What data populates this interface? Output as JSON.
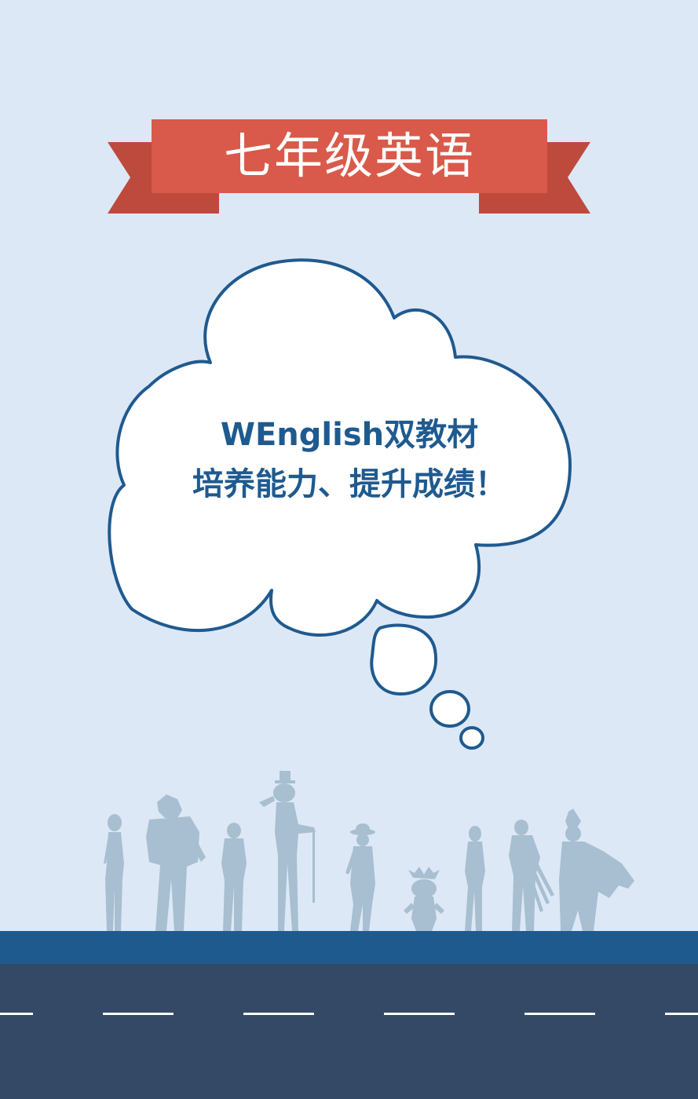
{
  "banner": {
    "title": "七年级英语"
  },
  "thought_bubble": {
    "line1": "WEnglish双教材",
    "line2": "培养能力、提升成绩！"
  },
  "colors": {
    "background": "#dde8f6",
    "banner_red": "#d95a4a",
    "banner_tail": "#bd4a3d",
    "bubble_outline": "#1f5a8f",
    "bubble_text": "#1f5a8f",
    "silhouettes": "#a7bfd0",
    "road_top": "#1f5a8f",
    "road": "#344966",
    "road_marking": "#ffffff"
  }
}
